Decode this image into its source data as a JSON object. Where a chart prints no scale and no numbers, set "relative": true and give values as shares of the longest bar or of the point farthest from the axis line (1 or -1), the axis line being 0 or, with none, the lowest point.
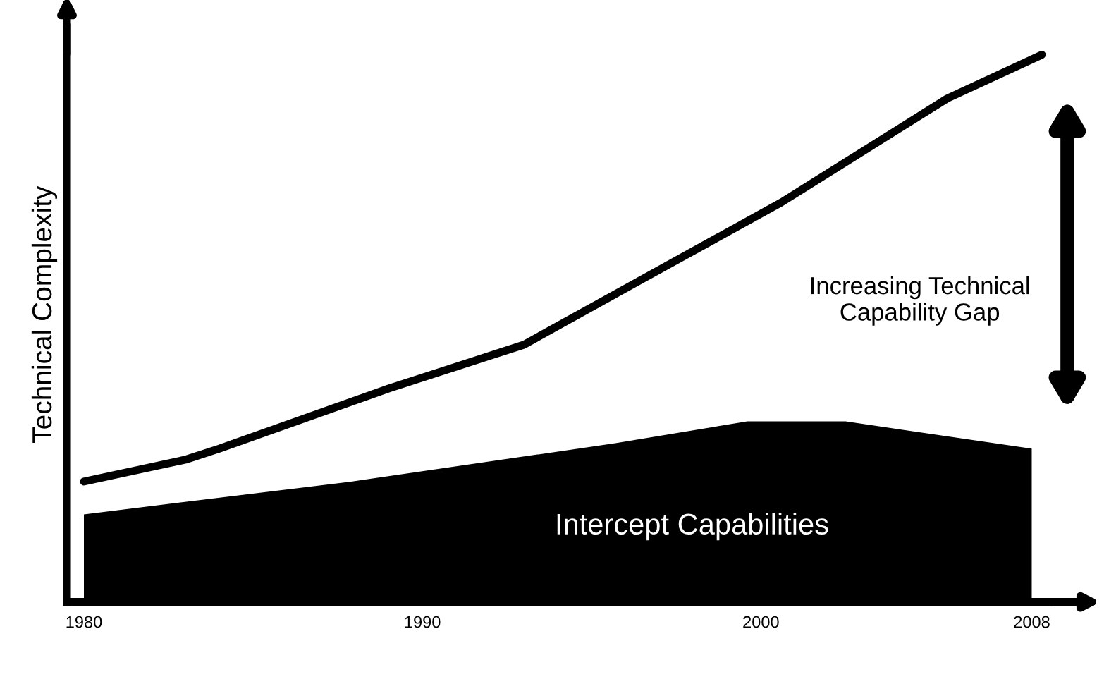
{
  "chart_data": {
    "type": "line",
    "relative": true,
    "ylabel": "Technical Complexity",
    "xlim": [
      1979.5,
      2009.5
    ],
    "xticks": [
      1980,
      1990,
      2000,
      2008
    ],
    "grid": false,
    "legend": false,
    "series": [
      {
        "type": "area",
        "color": "#000000",
        "x": [
          1980,
          1987.9,
          1995.7,
          1999.6,
          2000.6,
          2002.5,
          2008
        ],
        "values": [
          0.16,
          0.22,
          0.29,
          0.33,
          0.33,
          0.33,
          0.28
        ]
      },
      {
        "type": "line",
        "color": "#000000",
        "x": [
          1980,
          1983,
          1984,
          1989,
          1993,
          1996.5,
          2000.6,
          2005.5,
          2008.3
        ],
        "values": [
          0.22,
          0.26,
          0.28,
          0.39,
          0.47,
          0.59,
          0.73,
          0.92,
          1.0
        ]
      }
    ],
    "annotations": [
      "Increasing Technical Capability Gap",
      "Intercept Capabilities"
    ]
  }
}
